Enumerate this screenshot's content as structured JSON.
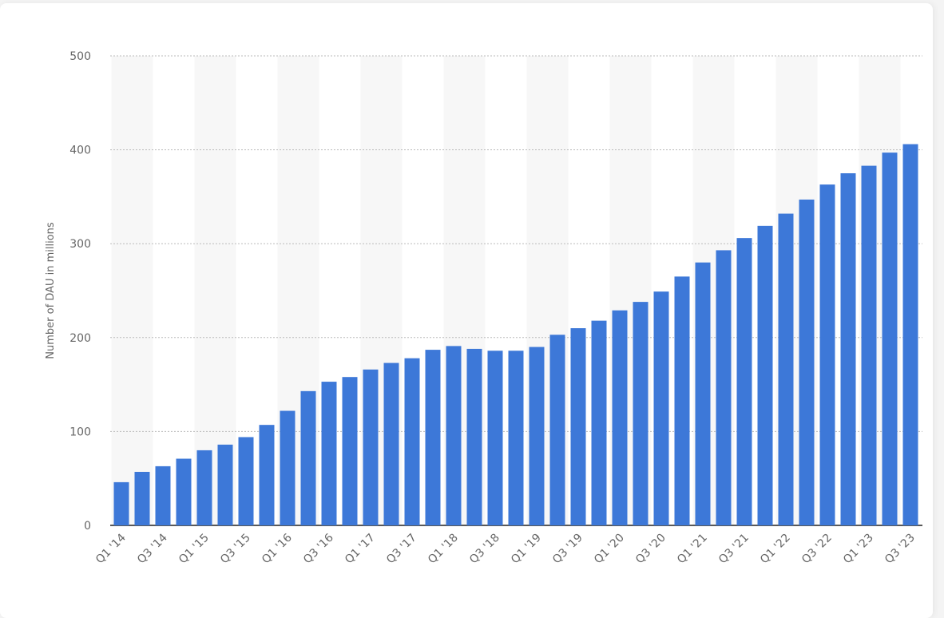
{
  "chart_data": {
    "type": "bar",
    "title": "",
    "xlabel": "",
    "ylabel": "Number of DAU in millions",
    "ylim": [
      0,
      500
    ],
    "yticks": [
      0,
      100,
      200,
      300,
      400,
      500
    ],
    "grid": true,
    "bar_color": "#3d78d8",
    "categories": [
      "Q1 '14",
      "Q2 '14",
      "Q3 '14",
      "Q4 '14",
      "Q1 '15",
      "Q2 '15",
      "Q3 '15",
      "Q4 '15",
      "Q1 '16",
      "Q2 '16",
      "Q3 '16",
      "Q4 '16",
      "Q1 '17",
      "Q2 '17",
      "Q3 '17",
      "Q4 '17",
      "Q1 '18",
      "Q2 '18",
      "Q3 '18",
      "Q4 '18",
      "Q1 '19",
      "Q2 '19",
      "Q3 '19",
      "Q4 '19",
      "Q1 '20",
      "Q2 '20",
      "Q3 '20",
      "Q4 '20",
      "Q1 '21",
      "Q2 '21",
      "Q3 '21",
      "Q4 '21",
      "Q1 '22",
      "Q2 '22",
      "Q3 '22",
      "Q4 '22",
      "Q1 '23",
      "Q2 '23",
      "Q3 '23"
    ],
    "values": [
      46,
      57,
      63,
      71,
      80,
      86,
      94,
      107,
      122,
      143,
      153,
      158,
      166,
      173,
      178,
      187,
      191,
      188,
      186,
      186,
      190,
      203,
      210,
      218,
      229,
      238,
      249,
      265,
      280,
      293,
      306,
      319,
      332,
      347,
      363,
      375,
      383,
      397,
      406
    ]
  }
}
